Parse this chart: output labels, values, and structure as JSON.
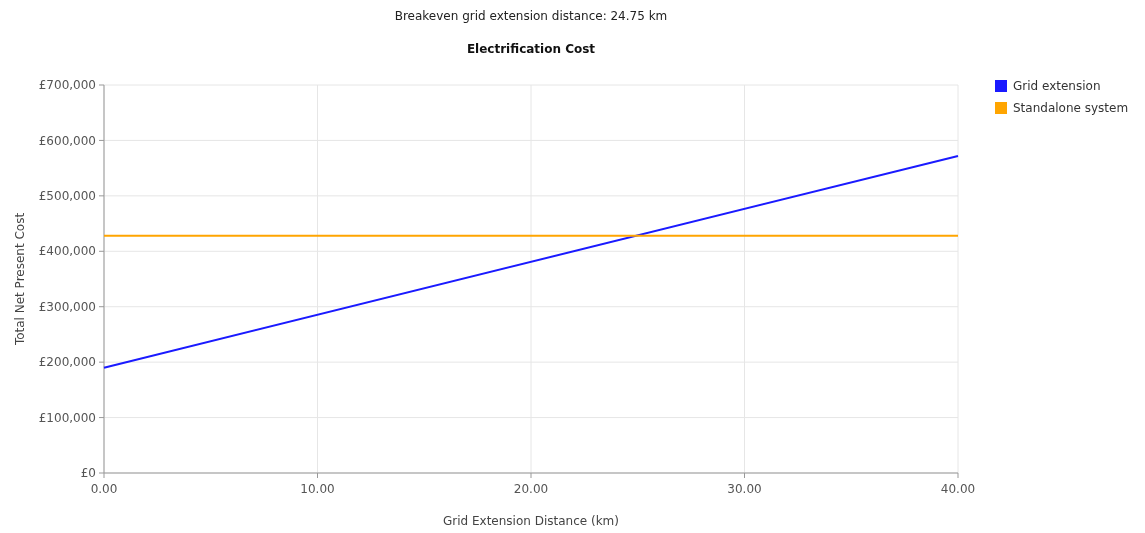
{
  "chart_data": {
    "type": "line",
    "title": "Electrification Cost",
    "subtitle": "Breakeven grid extension distance: 24.75 km",
    "xlabel": "Grid Extension Distance (km)",
    "ylabel": "Total Net Present Cost",
    "x": [
      0,
      40
    ],
    "series": [
      {
        "name": "Grid extension",
        "color": "#1a1aff",
        "values": [
          190000,
          572000
        ]
      },
      {
        "name": "Standalone system",
        "color": "#ffa500",
        "values": [
          428000,
          428000
        ]
      }
    ],
    "xlim": [
      0,
      40
    ],
    "xticks": [
      {
        "value": 0,
        "label": "0.00"
      },
      {
        "value": 10,
        "label": "10.00"
      },
      {
        "value": 20,
        "label": "20.00"
      },
      {
        "value": 30,
        "label": "30.00"
      },
      {
        "value": 40,
        "label": "40.00"
      }
    ],
    "ylim": [
      0,
      700000
    ],
    "yticks": [
      {
        "value": 0,
        "label": "£0"
      },
      {
        "value": 100000,
        "label": "£100,000"
      },
      {
        "value": 200000,
        "label": "£200,000"
      },
      {
        "value": 300000,
        "label": "£300,000"
      },
      {
        "value": 400000,
        "label": "£400,000"
      },
      {
        "value": 500000,
        "label": "£500,000"
      },
      {
        "value": 600000,
        "label": "£600,000"
      },
      {
        "value": 700000,
        "label": "£700,000"
      }
    ],
    "grid": true,
    "legend": "top right",
    "marker": "none",
    "line_style": "solid"
  }
}
